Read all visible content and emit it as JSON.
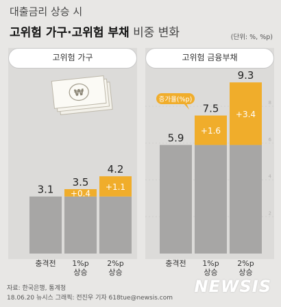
{
  "header": {
    "title_line1": "대출금리 상승 시",
    "title_bold": "고위험 가구·고위험 부채",
    "title_rest": " 비중 변화",
    "unit": "(단위: %, %p)"
  },
  "chart_data": [
    {
      "type": "bar",
      "title": "고위험 가구",
      "categories": [
        "충격전",
        "1%p\n상승",
        "2%p\n상승"
      ],
      "base": [
        3.1,
        3.1,
        3.1
      ],
      "increase": [
        null,
        0.4,
        1.1
      ],
      "total_labels": [
        "3.1",
        "3.5",
        "4.2"
      ],
      "increase_labels": [
        "",
        "+0.4",
        "+1.1"
      ],
      "ylim": [
        0,
        10.5
      ]
    },
    {
      "type": "bar",
      "title": "고위험 금융부채",
      "categories": [
        "충격전",
        "1%p\n상승",
        "2%p\n상승"
      ],
      "base": [
        5.9,
        5.9,
        5.9
      ],
      "increase": [
        null,
        1.6,
        3.4
      ],
      "total_labels": [
        "5.9",
        "7.5",
        "9.3"
      ],
      "increase_labels": [
        "",
        "+1.6",
        "+3.4"
      ],
      "ylim": [
        0,
        10.5
      ],
      "callout": "증가율(%p)",
      "gridlines": [
        2,
        4,
        6,
        8
      ],
      "gridline_labels": [
        "2",
        "4",
        "6",
        "8"
      ]
    }
  ],
  "colors": {
    "base_bar": "#a7a6a5",
    "increase_bar": "#f0ad2b",
    "callout": "#f0ad2b"
  },
  "footer": {
    "source": "자료: 한국은행, 통계청",
    "credit": "18.06.20 뉴시스 그래픽: 전진우 기자 618tue@newsis.com",
    "watermark": "NEWSIS"
  }
}
